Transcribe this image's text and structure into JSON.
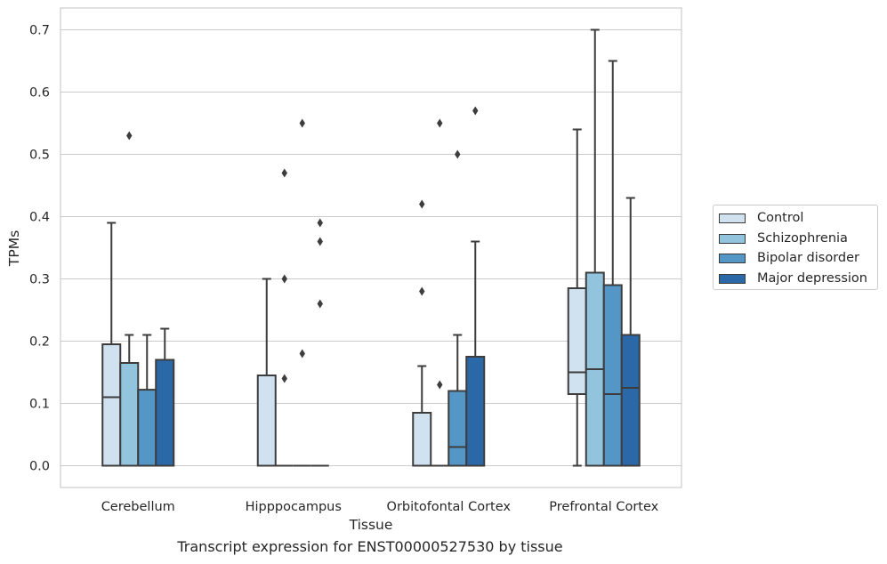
{
  "chart_data": {
    "type": "box",
    "caption": "Transcript expression for ENST00000527530 by tissue",
    "xlabel": "Tissue",
    "ylabel": "TPMs",
    "ylim": [
      -0.035,
      0.735
    ],
    "yticks": [
      "0.0",
      "0.1",
      "0.2",
      "0.3",
      "0.4",
      "0.5",
      "0.6",
      "0.7"
    ],
    "grid": true,
    "legend_position": "right",
    "categories": [
      "Cerebellum",
      "Hipppocampus",
      "Orbitofontal Cortex",
      "Prefrontal Cortex"
    ],
    "series": [
      {
        "name": "Control",
        "color": "#d0e1f0",
        "boxes": [
          {
            "q1": 0.0,
            "median": 0.11,
            "q3": 0.195,
            "whisker_low": 0.0,
            "whisker_high": 0.39,
            "outliers": []
          },
          {
            "q1": 0.0,
            "median": 0.0,
            "q3": 0.145,
            "whisker_low": 0.0,
            "whisker_high": 0.3,
            "outliers": []
          },
          {
            "q1": 0.0,
            "median": 0.0,
            "q3": 0.085,
            "whisker_low": 0.0,
            "whisker_high": 0.16,
            "outliers": [
              0.28,
              0.42
            ]
          },
          {
            "q1": 0.115,
            "median": 0.15,
            "q3": 0.285,
            "whisker_low": 0.0,
            "whisker_high": 0.54,
            "outliers": []
          }
        ]
      },
      {
        "name": "Schizophrenia",
        "color": "#93c4de",
        "boxes": [
          {
            "q1": 0.0,
            "median": 0.0,
            "q3": 0.165,
            "whisker_low": 0.0,
            "whisker_high": 0.21,
            "outliers": [
              0.53
            ]
          },
          {
            "q1": 0.0,
            "median": 0.0,
            "q3": 0.0,
            "whisker_low": 0.0,
            "whisker_high": 0.0,
            "outliers": [
              0.14,
              0.3,
              0.47
            ]
          },
          {
            "q1": 0.0,
            "median": 0.0,
            "q3": 0.0,
            "whisker_low": 0.0,
            "whisker_high": 0.0,
            "outliers": [
              0.13,
              0.55
            ]
          },
          {
            "q1": 0.0,
            "median": 0.155,
            "q3": 0.31,
            "whisker_low": 0.0,
            "whisker_high": 0.7,
            "outliers": []
          }
        ]
      },
      {
        "name": "Bipolar disorder",
        "color": "#5497c6",
        "boxes": [
          {
            "q1": 0.0,
            "median": 0.0,
            "q3": 0.122,
            "whisker_low": 0.0,
            "whisker_high": 0.21,
            "outliers": []
          },
          {
            "q1": 0.0,
            "median": 0.0,
            "q3": 0.0,
            "whisker_low": 0.0,
            "whisker_high": 0.0,
            "outliers": [
              0.18,
              0.55
            ]
          },
          {
            "q1": 0.0,
            "median": 0.03,
            "q3": 0.12,
            "whisker_low": 0.0,
            "whisker_high": 0.21,
            "outliers": [
              0.5
            ]
          },
          {
            "q1": 0.0,
            "median": 0.115,
            "q3": 0.29,
            "whisker_low": 0.0,
            "whisker_high": 0.65,
            "outliers": []
          }
        ]
      },
      {
        "name": "Major depression",
        "color": "#2a68a8",
        "boxes": [
          {
            "q1": 0.0,
            "median": 0.0,
            "q3": 0.17,
            "whisker_low": 0.0,
            "whisker_high": 0.22,
            "outliers": []
          },
          {
            "q1": 0.0,
            "median": 0.0,
            "q3": 0.0,
            "whisker_low": 0.0,
            "whisker_high": 0.0,
            "outliers": [
              0.26,
              0.36,
              0.39
            ]
          },
          {
            "q1": 0.0,
            "median": 0.0,
            "q3": 0.175,
            "whisker_low": 0.0,
            "whisker_high": 0.36,
            "outliers": [
              0.57
            ]
          },
          {
            "q1": 0.0,
            "median": 0.125,
            "q3": 0.21,
            "whisker_low": 0.0,
            "whisker_high": 0.43,
            "outliers": []
          }
        ]
      }
    ]
  }
}
